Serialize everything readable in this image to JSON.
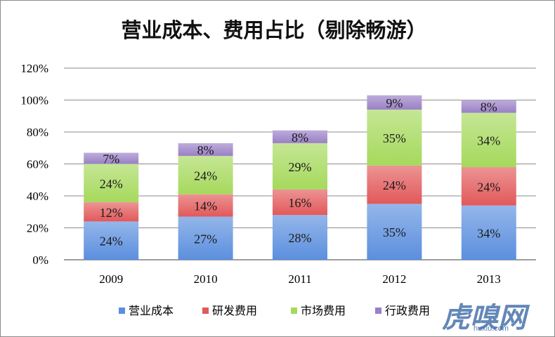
{
  "chart_data": {
    "type": "bar",
    "stacked": true,
    "title": "营业成本、费用占比（剔除畅游）",
    "categories": [
      "2009",
      "2010",
      "2011",
      "2012",
      "2013"
    ],
    "ylim": [
      0,
      120
    ],
    "yticks": [
      "0%",
      "20%",
      "40%",
      "60%",
      "80%",
      "100%",
      "120%"
    ],
    "grid": true,
    "legend_position": "bottom",
    "series": [
      {
        "name": "营业成本",
        "values": [
          24,
          27,
          28,
          35,
          34
        ],
        "labels": [
          "24%",
          "27%",
          "28%",
          "35%",
          "34%"
        ],
        "color": "#5b8fde"
      },
      {
        "name": "研发费用",
        "values": [
          12,
          14,
          16,
          24,
          24
        ],
        "labels": [
          "12%",
          "14%",
          "16%",
          "24%",
          "24%"
        ],
        "color": "#e2595a"
      },
      {
        "name": "市场费用",
        "values": [
          24,
          24,
          29,
          35,
          34
        ],
        "labels": [
          "24%",
          "24%",
          "29%",
          "35%",
          "34%"
        ],
        "color": "#a6d95c"
      },
      {
        "name": "行政费用",
        "values": [
          7,
          8,
          8,
          9,
          8
        ],
        "labels": [
          "7%",
          "8%",
          "8%",
          "9%",
          "8%"
        ],
        "color": "#9a80c6"
      }
    ]
  },
  "watermark": {
    "main": "虎嗅网",
    "sub": "huxiu.com"
  }
}
